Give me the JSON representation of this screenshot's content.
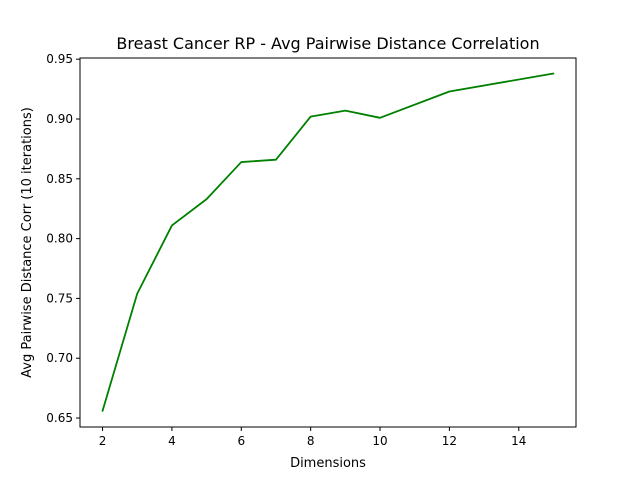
{
  "chart_data": {
    "type": "line",
    "title": "Breast Cancer RP - Avg Pairwise Distance Correlation",
    "xlabel": "Dimensions",
    "ylabel": "Avg Pairwise Distance Corr (10 iterations)",
    "xlim": [
      1.35,
      15.65
    ],
    "ylim": [
      0.6425,
      0.951
    ],
    "xticks": [
      2,
      4,
      6,
      8,
      10,
      12,
      14
    ],
    "yticks": [
      0.65,
      0.7,
      0.75,
      0.8,
      0.85,
      0.9,
      0.95
    ],
    "ytick_labels": [
      "0.65",
      "0.70",
      "0.75",
      "0.80",
      "0.85",
      "0.90",
      "0.95"
    ],
    "grid": false,
    "series": [
      {
        "color": "#008000",
        "x": [
          2,
          3,
          4,
          5,
          6,
          7,
          8,
          9,
          10,
          12,
          15
        ],
        "y": [
          0.656,
          0.754,
          0.811,
          0.833,
          0.864,
          0.866,
          0.902,
          0.907,
          0.901,
          0.923,
          0.938
        ]
      }
    ]
  }
}
